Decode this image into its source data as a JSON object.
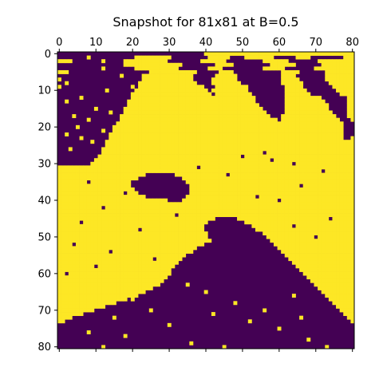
{
  "chart_data": {
    "type": "heatmap",
    "title": "Snapshot for 81x81 at B=0.5",
    "xlabel": "",
    "ylabel": "",
    "rows": 81,
    "cols": 81,
    "x_ticks": [
      0,
      10,
      20,
      30,
      40,
      50,
      60,
      70,
      80
    ],
    "y_ticks": [
      0,
      10,
      20,
      30,
      40,
      50,
      60,
      70,
      80
    ],
    "x_tick_position": "top",
    "value_colors": {
      "-1": "#440154",
      "1": "#fde725"
    },
    "grid": false,
    "lattice": [
      "-1 x40,1 x41",
      "-1 x8,1,-1 x12,1 x10,-1 x10,1 x6,-1 x4,1 x8,-1 x6,1 x4,-1 x9,1 x3",
      "1 x4,-1 x14,1 x12,-1 x9,1 x7,-1 x10,1 x7,-1 x8,1 x10",
      "-1 x18,1 x16,-1 x9,1 x5,-1 x10,1 x7,-1 x7,1 x9",
      "-1 x12,1,-1 x8,1 x12,-1 x8,1 x4,-1 x11,1 x6,-1 x8,1 x11",
      "1 x3,-1 x22,1 x13,-1 x6,1 x4,-1 x13,1 x5,-1 x7,1 x8",
      "-1 x23,1 x14,-1 x6,1 x6,-1 x12,1 x4,-1 x8,1 x8",
      "1,-1 x22,1 x14,-1 x5,1 x7,-1 x12,1 x5,-1 x7,1 x8",
      "-1 x22,1 x16,-1 x4,1 x8,-1 x11,1 x6,-1 x7,1 x7",
      "1,-1 x21,1 x18,-1 x3,1 x9,-1 x10,1 x5,-1 x8,1 x6",
      "-1 x21,1 x20,-1,1 x10,-1 x10,1 x6,-1 x8,1 x5",
      "-1 x20,1 x22,-1,1 x10,-1 x9,1 x7,-1 x8,1 x4",
      "-1 x20,1 x34,-1 x8,1 x10,-1 x7,1 x2",
      "-1 x19,1 x35,-1 x8,1 x11,-1 x6,1 x2",
      "-1 x19,1 x36,-1 x7,1 x12,-1 x5,1 x2",
      "-1 x18,1 x38,-1 x6,1 x12,-1 x5,1 x2",
      "-1 x18,1 x39,-1 x5,1 x13,-1 x4,1 x2",
      "-1 x17,1 x41,-1 x3,1 x15,-1 x3,1 x2",
      "-1 x17,1 x43,-1,1 x16,-1 x3,1",
      "-1 x16,1 x46,1 x16,-1 x3",
      "-1 x15,1 x47,1 x16,-1 x3",
      "-1 x15,1 x63,-1 x3",
      "-1 x14,1 x64,-1 x3",
      "-1 x14,1 x64,-1 x2,1",
      "-1 x13,1 x68",
      "-1 x13,1 x68",
      "-1 x12,1 x69",
      "-1 x12,1 x69",
      "-1 x11,1 x70",
      "-1 x10,1 x71",
      "-1 x9,1 x72",
      "1 x81",
      "1 x81",
      "1 x24,-1 x8,1 x49",
      "1 x22,-1 x12,1 x47",
      "1 x20,-1 x15,1 x46",
      "1 x20,-1 x16,1 x45",
      "1 x21,-1 x15,1 x45",
      "1 x22,-1 x14,1 x45",
      "1 x24,-1 x11,1 x46",
      "1 x30,-1 x4,1 x47",
      "1 x81",
      "1 x81",
      "1 x81",
      "1 x81",
      "1 x43,-1 x6,1 x32",
      "1 x41,-1 x10,1 x30",
      "1 x40,-1 x13,1 x28",
      "1 x40,-1 x14,1 x27",
      "1 x41,-1 x15,1 x25",
      "1 x41,-1 x16,1 x24",
      "1 x42,-1 x16,1 x23",
      "1 x40,-1 x19,1 x22",
      "1 x38,-1 x22,1 x21",
      "1 x37,-1 x24,1 x20",
      "1 x35,-1 x27,1 x19",
      "1 x34,-1 x29,1 x18",
      "1 x33,-1 x31,1 x17",
      "1 x32,-1 x33,1 x16",
      "1 x31,-1 x35,1 x15",
      "1 x31,-1 x36,1 x14",
      "1 x30,-1 x38,1 x13",
      "1 x29,-1 x40,1 x12",
      "1 x28,-1 x42,1 x11",
      "1 x26,-1 x45,1 x10",
      "1 x24,-1 x48,1 x9",
      "1 x22,-1 x51,1 x8",
      "1 x19,-1 x55,1 x7",
      "1 x16,-1 x59,1 x6",
      "1 x13,-1 x63,1 x5",
      "1 x10,-1 x67,1 x4",
      "1 x7,-1 x71,1 x3",
      "1 x4,-1 x75,1 x2",
      "1 x2,-1 x78,1",
      "-1 x81",
      "-1 x81",
      "-1 x81",
      "-1 x81",
      "-1 x81",
      "-1 x81",
      "-1 x81"
    ],
    "scatter_cells": {
      "flip_to_yellow": [
        [
          1,
          8
        ],
        [
          2,
          12
        ],
        [
          3,
          21
        ],
        [
          4,
          12
        ],
        [
          6,
          17
        ],
        [
          8,
          2
        ],
        [
          9,
          20
        ],
        [
          10,
          13
        ],
        [
          12,
          6
        ],
        [
          13,
          2
        ],
        [
          15,
          10
        ],
        [
          16,
          14
        ],
        [
          17,
          4
        ],
        [
          18,
          8
        ],
        [
          20,
          5
        ],
        [
          21,
          12
        ],
        [
          22,
          2
        ],
        [
          23,
          6
        ],
        [
          24,
          9
        ],
        [
          26,
          3
        ],
        [
          63,
          35
        ],
        [
          65,
          40
        ],
        [
          67,
          20
        ],
        [
          68,
          48
        ],
        [
          69,
          4
        ],
        [
          70,
          25
        ],
        [
          71,
          42
        ],
        [
          72,
          15
        ],
        [
          73,
          52
        ],
        [
          74,
          30
        ],
        [
          75,
          60
        ],
        [
          76,
          8
        ],
        [
          77,
          18
        ],
        [
          78,
          68
        ],
        [
          79,
          36
        ],
        [
          80,
          12
        ],
        [
          80,
          45
        ],
        [
          80,
          73
        ],
        [
          66,
          64
        ],
        [
          70,
          56
        ],
        [
          72,
          66
        ]
      ],
      "flip_to_purple": [
        [
          35,
          8
        ],
        [
          38,
          18
        ],
        [
          40,
          60
        ],
        [
          42,
          12
        ],
        [
          44,
          32
        ],
        [
          46,
          6
        ],
        [
          48,
          22
        ],
        [
          50,
          70
        ],
        [
          52,
          4
        ],
        [
          54,
          14
        ],
        [
          56,
          26
        ],
        [
          58,
          10
        ],
        [
          60,
          2
        ],
        [
          28,
          50
        ],
        [
          30,
          64
        ],
        [
          32,
          72
        ],
        [
          27,
          56
        ],
        [
          36,
          66
        ],
        [
          39,
          54
        ],
        [
          45,
          74
        ],
        [
          47,
          64
        ],
        [
          33,
          46
        ],
        [
          31,
          38
        ],
        [
          29,
          58
        ]
      ]
    }
  }
}
